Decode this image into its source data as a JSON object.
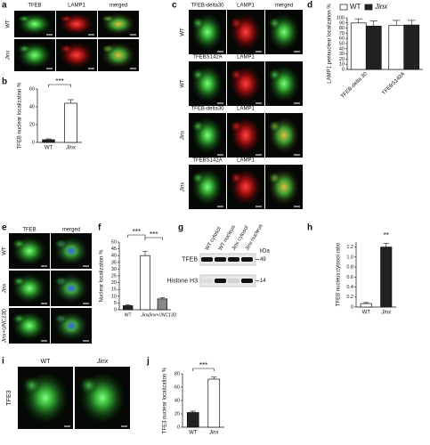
{
  "panel_letters": [
    "a",
    "b",
    "c",
    "d",
    "e",
    "f",
    "g",
    "h",
    "i",
    "j"
  ],
  "panel_a": {
    "columns": [
      "TFEB",
      "LAMP1",
      "merged"
    ],
    "rows": [
      "WT",
      "Jinx"
    ]
  },
  "panel_c": {
    "rows": [
      {
        "label": "WT",
        "columns": [
          "TFEB-delta30",
          "LAMP1",
          "merged"
        ]
      },
      {
        "label": "WT",
        "columns": [
          "TFEBS142A",
          "LAMP1"
        ]
      },
      {
        "label": "Jinx",
        "columns": [
          "TFEB-delta30",
          "LAMP1"
        ]
      },
      {
        "label": "Jinx",
        "columns": [
          "TFEBS142A",
          "LAMP1"
        ]
      }
    ]
  },
  "panel_e": {
    "columns": [
      "TFEB",
      "merged"
    ],
    "rows": [
      "WT",
      "Jinx",
      "Jinx+UNC13D"
    ]
  },
  "panel_g": {
    "lanes": [
      "WT cytosol",
      "WT nucleus",
      "Jinx cytosol",
      "Jinx nucleus"
    ],
    "unit": "kDa",
    "bands": [
      {
        "label": "TFEB",
        "marker": "49"
      },
      {
        "label": "Histone H3",
        "marker": "14"
      }
    ]
  },
  "panel_i": {
    "columns": [
      "WT",
      "Jinx"
    ],
    "row": "TFE3"
  },
  "chart_data": [
    {
      "type": "bar",
      "ylabel": "TFEB nuclear localization %",
      "categories": [
        "WT",
        "Jinx"
      ],
      "values": [
        3,
        44
      ],
      "errors": [
        1,
        4
      ],
      "colors": [
        "#222222",
        "#ffffff"
      ],
      "ylim": [
        0,
        60
      ],
      "yticks": [
        0,
        20,
        40,
        60
      ],
      "annotations": [
        "***"
      ]
    },
    {
      "type": "bar",
      "ylabel": "LAMP1 perinuclear localization %",
      "categories": [
        "TFEB-delta 30",
        "TFEBS142A"
      ],
      "series": [
        {
          "name": "WT",
          "color": "#ffffff",
          "values": [
            90,
            85
          ],
          "errors": [
            8,
            10
          ]
        },
        {
          "name": "Jinx",
          "color": "#222222",
          "values": [
            84,
            86
          ],
          "errors": [
            10,
            9
          ]
        }
      ],
      "ylim": [
        0,
        100
      ],
      "yticks": [
        0,
        10,
        20,
        30,
        40,
        50,
        60,
        70,
        80,
        90,
        100
      ],
      "legend": "top"
    },
    {
      "type": "bar",
      "ylabel": "Nuclear localization %",
      "categories": [
        "WT",
        "Jinx",
        "Jinx+UNC13D"
      ],
      "values": [
        3,
        40,
        8
      ],
      "errors": [
        0.5,
        3,
        1
      ],
      "colors": [
        "#222222",
        "#ffffff",
        "#888888"
      ],
      "ylim": [
        0,
        50
      ],
      "yticks": [
        0,
        5,
        10,
        15,
        20,
        25,
        30,
        35,
        40,
        45,
        50
      ],
      "annotations": [
        "***",
        "***"
      ]
    },
    {
      "type": "bar",
      "ylabel": "TFEB nucleus:cytosol ratio",
      "categories": [
        "WT",
        "Jinx"
      ],
      "values": [
        0.07,
        1.2
      ],
      "errors": [
        0.02,
        0.07
      ],
      "colors": [
        "#ffffff",
        "#222222"
      ],
      "ylim": [
        0,
        1.3
      ],
      "yticks": [
        0,
        0.2,
        0.4,
        0.6,
        0.8,
        {
          "value": 1,
          "label": "1.0"
        },
        1.2
      ],
      "annotations": [
        "**"
      ]
    },
    {
      "type": "bar",
      "ylabel": "TFE3 nuclear localization %",
      "categories": [
        "WT",
        "Jinx"
      ],
      "values": [
        22,
        72
      ],
      "errors": [
        2,
        3
      ],
      "colors": [
        "#222222",
        "#ffffff"
      ],
      "ylim": [
        0,
        80
      ],
      "yticks": [
        0,
        20,
        40,
        60,
        80
      ],
      "annotations": [
        "***"
      ]
    }
  ]
}
